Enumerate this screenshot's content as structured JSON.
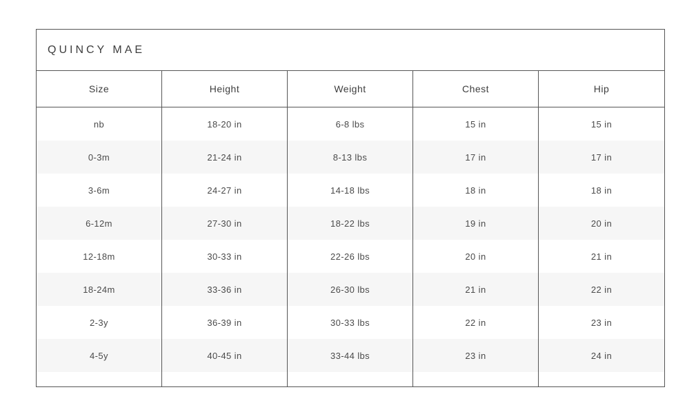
{
  "chart_data": {
    "type": "table",
    "title": "QUINCY MAE",
    "columns": [
      "Size",
      "Height",
      "Weight",
      "Chest",
      "Hip"
    ],
    "rows": [
      [
        "nb",
        "18-20 in",
        "6-8 lbs",
        "15 in",
        "15 in"
      ],
      [
        "0-3m",
        "21-24 in",
        "8-13 lbs",
        "17 in",
        "17 in"
      ],
      [
        "3-6m",
        "24-27 in",
        "14-18 lbs",
        "18 in",
        "18 in"
      ],
      [
        "6-12m",
        "27-30 in",
        "18-22 lbs",
        "19 in",
        "20 in"
      ],
      [
        "12-18m",
        "30-33 in",
        "22-26 lbs",
        "20 in",
        "21 in"
      ],
      [
        "18-24m",
        "33-36 in",
        "26-30 lbs",
        "21 in",
        "22 in"
      ],
      [
        "2-3y",
        "36-39 in",
        "30-33 lbs",
        "22 in",
        "23 in"
      ],
      [
        "4-5y",
        "40-45 in",
        "33-44 lbs",
        "23 in",
        "24 in"
      ]
    ]
  },
  "colors": {
    "background": "#ffffff",
    "stripe": "#f6f6f6",
    "border": "#555555",
    "text": "#4a4a4a"
  }
}
